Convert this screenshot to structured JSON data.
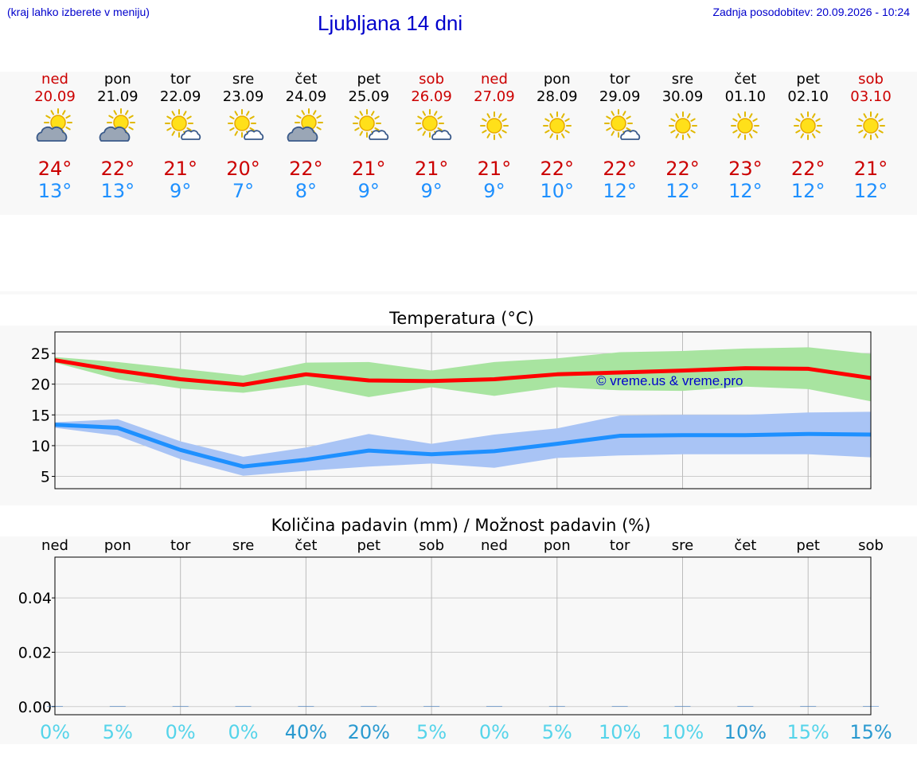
{
  "header": {
    "location_hint": "(kraj lahko izberete v meniju)",
    "title": "Ljubljana 14 dni",
    "updated": "Zadnja posodobitev: 20.09.2026 - 10:24"
  },
  "colors": {
    "link": "#0000cc",
    "weekend": "#cc0000",
    "tmax": "#cc0000",
    "tmin": "#1e90ff",
    "max_line": "#ff0000",
    "max_band": "#a8e4a0",
    "min_line": "#1e90ff",
    "min_band": "#a9c4f5",
    "prob_low": "#55d4ea",
    "prob_high": "#2a9ad0"
  },
  "forecast": [
    {
      "day": "ned",
      "date": "20.09",
      "weekend": true,
      "icon": "sun-cloud-icon",
      "tmax": "24°",
      "tmin": "13°"
    },
    {
      "day": "pon",
      "date": "21.09",
      "weekend": false,
      "icon": "sun-cloud-icon",
      "tmax": "22°",
      "tmin": "13°"
    },
    {
      "day": "tor",
      "date": "22.09",
      "weekend": false,
      "icon": "sun-small-cloud-icon",
      "tmax": "21°",
      "tmin": "9°"
    },
    {
      "day": "sre",
      "date": "23.09",
      "weekend": false,
      "icon": "sun-small-cloud-icon",
      "tmax": "20°",
      "tmin": "7°"
    },
    {
      "day": "čet",
      "date": "24.09",
      "weekend": false,
      "icon": "sun-cloud-icon",
      "tmax": "22°",
      "tmin": "8°"
    },
    {
      "day": "pet",
      "date": "25.09",
      "weekend": false,
      "icon": "sun-small-cloud-icon",
      "tmax": "21°",
      "tmin": "9°"
    },
    {
      "day": "sob",
      "date": "26.09",
      "weekend": true,
      "icon": "sun-small-cloud-icon",
      "tmax": "21°",
      "tmin": "9°"
    },
    {
      "day": "ned",
      "date": "27.09",
      "weekend": true,
      "icon": "sun-icon",
      "tmax": "21°",
      "tmin": "9°"
    },
    {
      "day": "pon",
      "date": "28.09",
      "weekend": false,
      "icon": "sun-icon",
      "tmax": "22°",
      "tmin": "10°"
    },
    {
      "day": "tor",
      "date": "29.09",
      "weekend": false,
      "icon": "sun-small-cloud-icon",
      "tmax": "22°",
      "tmin": "12°"
    },
    {
      "day": "sre",
      "date": "30.09",
      "weekend": false,
      "icon": "sun-icon",
      "tmax": "22°",
      "tmin": "12°"
    },
    {
      "day": "čet",
      "date": "01.10",
      "weekend": false,
      "icon": "sun-icon",
      "tmax": "23°",
      "tmin": "12°"
    },
    {
      "day": "pet",
      "date": "02.10",
      "weekend": false,
      "icon": "sun-icon",
      "tmax": "22°",
      "tmin": "12°"
    },
    {
      "day": "sob",
      "date": "03.10",
      "weekend": true,
      "icon": "sun-icon",
      "tmax": "21°",
      "tmin": "12°"
    }
  ],
  "chart_data": [
    {
      "type": "line",
      "title": "Temperatura (°C)",
      "ylim": [
        3,
        28.5
      ],
      "yticks": [
        5,
        10,
        15,
        20,
        25
      ],
      "grid": true,
      "watermark": "© vreme.us & vreme.pro",
      "series": [
        {
          "values": [
            23.9,
            22.2,
            20.8,
            19.9,
            21.6,
            20.6,
            20.5,
            20.8,
            21.6,
            21.9,
            22.2,
            22.6,
            22.5,
            21.0
          ],
          "upper": [
            24.4,
            23.6,
            22.5,
            21.4,
            23.5,
            23.6,
            22.2,
            23.6,
            24.2,
            25.2,
            25.4,
            25.8,
            26.0,
            24.9
          ],
          "lower": [
            23.5,
            20.8,
            19.3,
            18.6,
            19.9,
            17.9,
            19.5,
            18.1,
            19.5,
            19.0,
            18.9,
            19.6,
            19.2,
            17.2
          ]
        },
        {
          "values": [
            13.4,
            12.9,
            9.3,
            6.6,
            7.7,
            9.2,
            8.6,
            9.1,
            10.3,
            11.6,
            11.7,
            11.7,
            11.9,
            11.8
          ],
          "upper": [
            13.8,
            14.3,
            10.7,
            8.2,
            9.7,
            11.9,
            10.3,
            11.8,
            12.8,
            14.9,
            15.0,
            15.0,
            15.4,
            15.5
          ],
          "lower": [
            12.9,
            11.6,
            7.8,
            5.1,
            5.9,
            6.6,
            7.1,
            6.4,
            8.0,
            8.4,
            8.6,
            8.6,
            8.6,
            8.1
          ]
        }
      ]
    },
    {
      "type": "bar",
      "title": "Količina padavin (mm) / Možnost padavin (%)",
      "ylim": [
        -0.003,
        0.055
      ],
      "yticks": [
        0.0,
        0.02,
        0.04
      ],
      "ytick_labels": [
        "0.00",
        "0.02",
        "0.04"
      ],
      "grid": true,
      "categories": [
        "ned",
        "pon",
        "tor",
        "sre",
        "čet",
        "pet",
        "sob",
        "ned",
        "pon",
        "tor",
        "sre",
        "čet",
        "pet",
        "sob"
      ],
      "values": [
        0,
        0,
        0,
        0,
        0,
        0,
        0,
        0,
        0,
        0,
        0,
        0,
        0,
        0
      ],
      "probability": [
        "0%",
        "5%",
        "0%",
        "0%",
        "40%",
        "20%",
        "5%",
        "0%",
        "5%",
        "10%",
        "10%",
        "10%",
        "15%",
        "15%"
      ],
      "probability_level": [
        "low",
        "low",
        "low",
        "low",
        "high",
        "high",
        "low",
        "low",
        "low",
        "low",
        "low",
        "high",
        "low",
        "high"
      ]
    }
  ]
}
